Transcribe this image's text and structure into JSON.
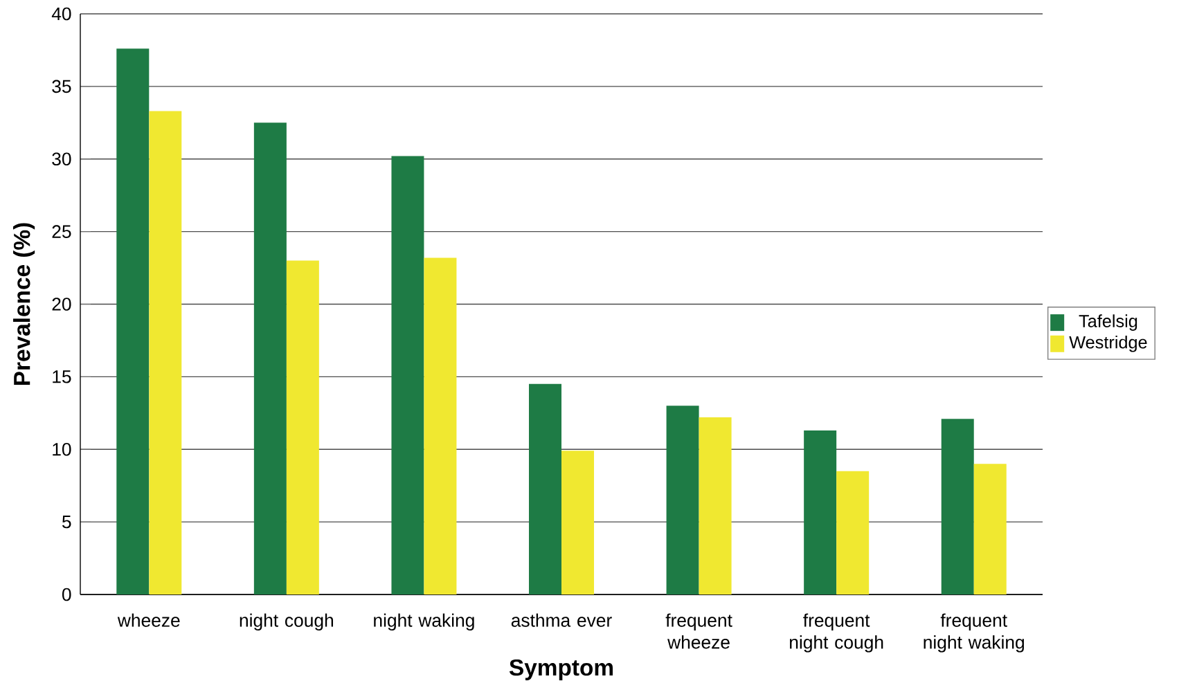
{
  "chart_data": {
    "type": "bar",
    "xlabel": "Symptom",
    "ylabel": "Prevalence (%)",
    "categories": [
      "wheeze",
      "night cough",
      "night waking",
      "asthma ever",
      "frequent wheeze",
      "frequent night cough",
      "frequent night waking"
    ],
    "series": [
      {
        "name": "Tafelsig",
        "color": "#1e7b45",
        "values": [
          37.6,
          32.5,
          30.2,
          14.5,
          13.0,
          11.3,
          12.1
        ]
      },
      {
        "name": "Westridge",
        "color": "#f0e830",
        "values": [
          33.3,
          23.0,
          23.2,
          9.9,
          12.2,
          8.5,
          9.0
        ]
      }
    ],
    "ylim": [
      0,
      40
    ],
    "yticks": [
      0,
      5,
      10,
      15,
      20,
      25,
      30,
      35,
      40
    ],
    "grid": "y",
    "legend": "right"
  }
}
